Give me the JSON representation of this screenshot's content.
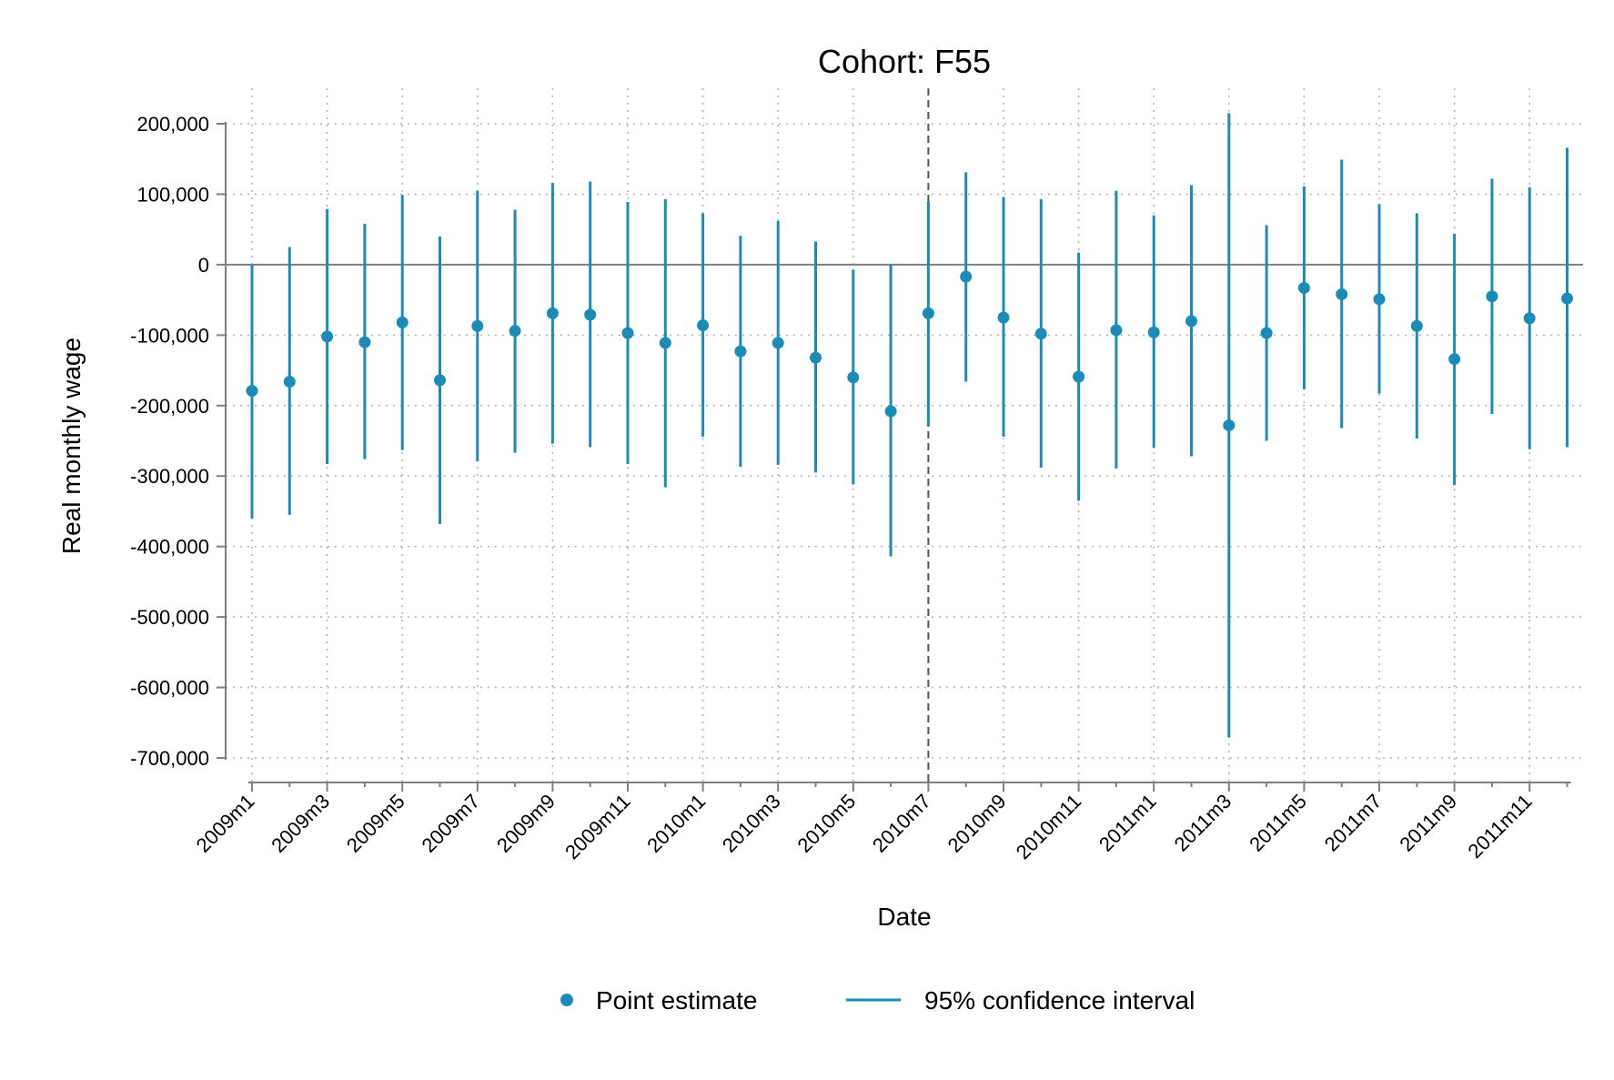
{
  "chart_data": {
    "type": "scatter",
    "title": "Cohort: F55",
    "xlabel": "Date",
    "ylabel": "Real monthly wage",
    "ylim": [
      -700000,
      200000
    ],
    "yticks": [
      200000,
      100000,
      0,
      -100000,
      -200000,
      -300000,
      -400000,
      -500000,
      -600000,
      -700000
    ],
    "ytick_labels": [
      "200,000",
      "100,000",
      "0",
      "-100,000",
      "-200,000",
      "-300,000",
      "-400,000",
      "-500,000",
      "-600,000",
      "-700,000"
    ],
    "xtick_labels": [
      "2009m1",
      "2009m3",
      "2009m5",
      "2009m7",
      "2009m9",
      "2009m11",
      "2010m1",
      "2010m3",
      "2010m5",
      "2010m7",
      "2010m9",
      "2010m11",
      "2011m1",
      "2011m3",
      "2011m5",
      "2011m7",
      "2011m9",
      "2011m11"
    ],
    "x": [
      "2009m1",
      "2009m2",
      "2009m3",
      "2009m4",
      "2009m5",
      "2009m6",
      "2009m7",
      "2009m8",
      "2009m9",
      "2009m10",
      "2009m11",
      "2009m12",
      "2010m1",
      "2010m2",
      "2010m3",
      "2010m4",
      "2010m5",
      "2010m6",
      "2010m7",
      "2010m8",
      "2010m9",
      "2010m10",
      "2010m11",
      "2010m12",
      "2011m1",
      "2011m2",
      "2011m3",
      "2011m4",
      "2011m5",
      "2011m6",
      "2011m7",
      "2011m8",
      "2011m9",
      "2011m10",
      "2011m11",
      "2011m12"
    ],
    "series": [
      {
        "name": "Point estimate",
        "values": [
          -179000,
          -166000,
          -102000,
          -110000,
          -82000,
          -164000,
          -87000,
          -94000,
          -69000,
          -71000,
          -97000,
          -111000,
          -86000,
          -123000,
          -111000,
          -132000,
          -160000,
          -208000,
          -69000,
          -17000,
          -75000,
          -98000,
          -159000,
          -93000,
          -96000,
          -80000,
          -228000,
          -97000,
          -33000,
          -42000,
          -49000,
          -87000,
          -134000,
          -45000,
          -76000,
          -48000
        ]
      },
      {
        "name": "95% confidence interval",
        "lower": [
          -360000,
          -355000,
          -283000,
          -276000,
          -263000,
          -368000,
          -279000,
          -267000,
          -254000,
          -259000,
          -283000,
          -316000,
          -244000,
          -287000,
          -284000,
          -295000,
          -312000,
          -414000,
          -229000,
          -166000,
          -244000,
          -288000,
          -335000,
          -289000,
          -260000,
          -272000,
          -671000,
          -250000,
          -177000,
          -232000,
          -183000,
          -247000,
          -313000,
          -212000,
          -262000,
          -259000
        ],
        "upper": [
          0,
          25000,
          79000,
          58000,
          99000,
          40000,
          105000,
          78000,
          116000,
          118000,
          89000,
          93000,
          73000,
          41000,
          62000,
          33000,
          -7000,
          0,
          89000,
          131000,
          96000,
          93000,
          17000,
          105000,
          70000,
          113000,
          215000,
          56000,
          111000,
          149000,
          86000,
          73000,
          44000,
          122000,
          110000,
          166000
        ]
      }
    ],
    "reference_line_x": "2010m7",
    "reference_line_y": 0,
    "grid": true,
    "legend": "bottom",
    "colors": {
      "marker": "#1b8cb8",
      "axis": "#7f7f7f",
      "grid": "#b0b0b0",
      "refline": "#555555"
    }
  }
}
